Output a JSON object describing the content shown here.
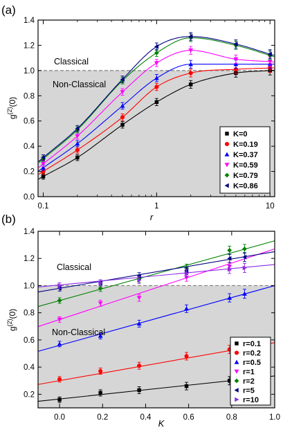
{
  "chart_data": [
    {
      "panel_label": "(a)",
      "type": "scatter",
      "xscale": "log",
      "xlabel": "r",
      "ylabel": "g(2)(0)",
      "xlim": [
        0.09,
        11
      ],
      "ylim": [
        0.0,
        1.4
      ],
      "xticks": [
        0.1,
        1,
        10
      ],
      "xtick_labels": [
        "0.1",
        "1",
        "10"
      ],
      "yticks": [
        0.0,
        0.2,
        0.4,
        0.6,
        0.8,
        1.0,
        1.2,
        1.4
      ],
      "ytick_labels": [
        "0.0",
        "0.2",
        "0.4",
        "0.6",
        "0.8",
        "1.0",
        "1.2",
        "1.4"
      ],
      "threshold": 1.0,
      "region_labels": {
        "above": "Classical",
        "below": "Non-Classical"
      },
      "legend_position": "bottom-right",
      "x": [
        0.1,
        0.2,
        0.5,
        1,
        2,
        5,
        10
      ],
      "series": [
        {
          "name": "K=0",
          "color": "#000000",
          "marker": "square",
          "values": [
            0.16,
            0.31,
            0.57,
            0.75,
            0.89,
            0.98,
            1.0
          ]
        },
        {
          "name": "K=0.19",
          "color": "#ff0000",
          "marker": "circle",
          "values": [
            0.2,
            0.37,
            0.63,
            0.87,
            0.98,
            1.01,
            1.02
          ]
        },
        {
          "name": "K=0.37",
          "color": "#0000ff",
          "marker": "triangle-up",
          "values": [
            0.23,
            0.42,
            0.72,
            0.94,
            1.05,
            1.05,
            1.05
          ]
        },
        {
          "name": "K=0.59",
          "color": "#ff00ff",
          "marker": "triangle-down",
          "values": [
            0.26,
            0.48,
            0.83,
            1.06,
            1.16,
            1.09,
            1.07
          ]
        },
        {
          "name": "K=0.79",
          "color": "#008000",
          "marker": "diamond",
          "values": [
            0.3,
            0.53,
            0.92,
            1.14,
            1.26,
            1.2,
            1.12
          ]
        },
        {
          "name": "K=0.86",
          "color": "#000080",
          "marker": "triangle-left",
          "values": [
            0.31,
            0.54,
            0.93,
            1.19,
            1.27,
            1.21,
            1.13
          ]
        }
      ]
    },
    {
      "panel_label": "(b)",
      "type": "scatter",
      "xlabel": "K",
      "ylabel": "g(2)(0)",
      "xlim": [
        -0.1,
        1.0
      ],
      "ylim": [
        0.1,
        1.4
      ],
      "xticks": [
        0.0,
        0.2,
        0.4,
        0.6,
        0.8,
        1.0
      ],
      "xtick_labels": [
        "0.0",
        "0.2",
        "0.4",
        "0.6",
        "0.8",
        "1.0"
      ],
      "yticks": [
        0.2,
        0.4,
        0.6,
        0.8,
        1.0,
        1.2,
        1.4
      ],
      "ytick_labels": [
        "0.2",
        "0.4",
        "0.6",
        "0.8",
        "1.0",
        "1.2",
        "1.4"
      ],
      "threshold": 1.0,
      "region_labels": {
        "above": "Classical",
        "below": "Non-Classical"
      },
      "legend_position": "bottom-right",
      "x": [
        0,
        0.19,
        0.37,
        0.59,
        0.79,
        0.86
      ],
      "series": [
        {
          "name": "r=0.1",
          "color": "#000000",
          "marker": "square",
          "values": [
            0.16,
            0.21,
            0.23,
            0.26,
            0.3,
            null
          ],
          "fit": [
            0.165,
            0.17
          ]
        },
        {
          "name": "r=0.2",
          "color": "#ff0000",
          "marker": "circle",
          "values": [
            0.31,
            0.37,
            0.41,
            0.48,
            0.53,
            null
          ],
          "fit": [
            0.3,
            0.28
          ]
        },
        {
          "name": "r=0.5",
          "color": "#0000ff",
          "marker": "triangle-up",
          "values": [
            0.57,
            0.63,
            0.72,
            0.83,
            0.91,
            0.94
          ],
          "fit": [
            0.56,
            0.44
          ]
        },
        {
          "name": "r=1",
          "color": "#ff00ff",
          "marker": "triangle-down",
          "values": [
            0.75,
            0.87,
            0.91,
            1.06,
            1.14,
            null
          ],
          "fit": [
            0.75,
            0.52
          ]
        },
        {
          "name": "r=2",
          "color": "#008000",
          "marker": "diamond",
          "values": [
            0.89,
            0.98,
            1.05,
            1.13,
            1.26,
            1.27
          ],
          "fit": [
            0.89,
            0.44
          ]
        },
        {
          "name": "r=5",
          "color": "#000080",
          "marker": "triangle-left",
          "values": [
            0.98,
            1.02,
            1.07,
            1.11,
            1.2,
            1.21
          ],
          "fit": [
            0.98,
            0.27
          ]
        },
        {
          "name": "r=10",
          "color": "#8a2be2",
          "marker": "triangle-right",
          "values": [
            1.0,
            1.02,
            1.04,
            1.09,
            1.12,
            1.13
          ],
          "fit": [
            1.005,
            0.15
          ]
        }
      ]
    }
  ]
}
